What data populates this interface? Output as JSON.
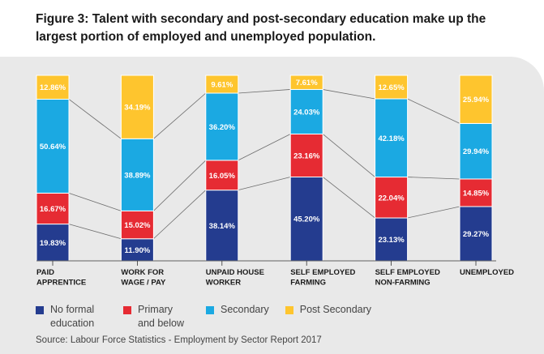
{
  "title": "Figure 3: Talent with secondary and post-secondary education make up the largest portion of employed and unemployed population.",
  "source": "Source: Labour Force Statistics - Employment by Sector Report 2017",
  "legend": [
    {
      "label": "No formal education",
      "color": "#243c8f"
    },
    {
      "label": "Primary and below",
      "color": "#e62b33"
    },
    {
      "label": "Secondary",
      "color": "#1ba9e2"
    },
    {
      "label": "Post Secondary",
      "color": "#fec52e"
    }
  ],
  "chart_data": {
    "type": "bar",
    "stacked": true,
    "percent_stacked": true,
    "categories": [
      "PAID APPRENTICE",
      "WORK FOR WAGE / PAY",
      "UNPAID HOUSE WORKER",
      "SELF EMPLOYED FARMING",
      "SELF EMPLOYED NON-FARMING",
      "UNEMPLOYED"
    ],
    "series": [
      {
        "name": "No formal education",
        "color": "#243c8f",
        "values": [
          19.83,
          11.9,
          38.14,
          45.2,
          23.13,
          29.27
        ],
        "labels": [
          "19.83%",
          "11.90%",
          "38.14%",
          "45.20%",
          "23.13%",
          "29.27%"
        ]
      },
      {
        "name": "Primary and below",
        "color": "#e62b33",
        "values": [
          16.67,
          15.02,
          16.05,
          23.16,
          22.04,
          14.85
        ],
        "labels": [
          "16.67%",
          "15.02%",
          "16.05%",
          "23.16%",
          "22.04%",
          "14.85%"
        ]
      },
      {
        "name": "Secondary",
        "color": "#1ba9e2",
        "values": [
          50.64,
          38.89,
          36.2,
          24.03,
          42.18,
          29.94
        ],
        "labels": [
          "50.64%",
          "38.89%",
          "36.20%",
          "24.03%",
          "42.18%",
          "29.94%"
        ]
      },
      {
        "name": "Post Secondary",
        "color": "#fec52e",
        "values": [
          12.86,
          34.19,
          9.61,
          7.61,
          12.65,
          25.94
        ],
        "labels": [
          "12.86%",
          "34.19%",
          "9.61%",
          "7.61%",
          "12.65%",
          "25.94%"
        ]
      }
    ],
    "connector_lines": true,
    "grid": false,
    "legend_position": "bottom-left"
  }
}
